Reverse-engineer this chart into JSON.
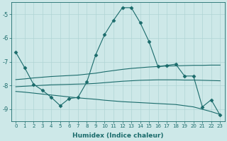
{
  "xlabel": "Humidex (Indice chaleur)",
  "bg_color": "#cde8e8",
  "line_color": "#1a6b6b",
  "grid_color": "#afd4d4",
  "xlim": [
    -0.5,
    23.5
  ],
  "ylim": [
    -9.5,
    -4.5
  ],
  "yticks": [
    -9,
    -8,
    -7,
    -6,
    -5
  ],
  "xticks": [
    0,
    1,
    2,
    3,
    4,
    5,
    6,
    7,
    8,
    9,
    10,
    11,
    12,
    13,
    14,
    15,
    16,
    17,
    18,
    19,
    20,
    21,
    22,
    23
  ],
  "series": [
    {
      "x": [
        0,
        1,
        2,
        3,
        4,
        5,
        6,
        7,
        8,
        9,
        10,
        11,
        12,
        13,
        14,
        15,
        16,
        17,
        18,
        19,
        20,
        21,
        22,
        23
      ],
      "y": [
        -6.6,
        -7.25,
        -7.95,
        -8.2,
        -8.5,
        -8.85,
        -8.55,
        -8.5,
        -7.85,
        -6.7,
        -5.85,
        -5.25,
        -4.72,
        -4.72,
        -5.35,
        -6.15,
        -7.2,
        -7.15,
        -7.1,
        -7.6,
        -7.6,
        -8.9,
        -8.6,
        -9.25
      ],
      "marker": "D",
      "markersize": 2.5
    },
    {
      "x": [
        0,
        1,
        2,
        3,
        4,
        5,
        6,
        7,
        8,
        9,
        10,
        11,
        12,
        13,
        14,
        15,
        16,
        17,
        18,
        19,
        20,
        21,
        22,
        23
      ],
      "y": [
        -7.75,
        -7.72,
        -7.68,
        -7.65,
        -7.62,
        -7.6,
        -7.58,
        -7.56,
        -7.52,
        -7.48,
        -7.42,
        -7.37,
        -7.32,
        -7.28,
        -7.25,
        -7.22,
        -7.2,
        -7.18,
        -7.17,
        -7.16,
        -7.15,
        -7.15,
        -7.14,
        -7.14
      ],
      "marker": null
    },
    {
      "x": [
        0,
        1,
        2,
        3,
        4,
        5,
        6,
        7,
        8,
        9,
        10,
        11,
        12,
        13,
        14,
        15,
        16,
        17,
        18,
        19,
        20,
        21,
        22,
        23
      ],
      "y": [
        -8.05,
        -8.03,
        -8.01,
        -7.99,
        -7.97,
        -7.96,
        -7.95,
        -7.94,
        -7.93,
        -7.91,
        -7.88,
        -7.85,
        -7.82,
        -7.8,
        -7.78,
        -7.77,
        -7.76,
        -7.76,
        -7.76,
        -7.77,
        -7.77,
        -7.78,
        -7.79,
        -7.8
      ],
      "marker": null
    },
    {
      "x": [
        0,
        1,
        2,
        3,
        4,
        5,
        6,
        7,
        8,
        9,
        10,
        11,
        12,
        13,
        14,
        15,
        16,
        17,
        18,
        19,
        20,
        21,
        22,
        23
      ],
      "y": [
        -8.25,
        -8.28,
        -8.32,
        -8.36,
        -8.4,
        -8.44,
        -8.48,
        -8.52,
        -8.55,
        -8.58,
        -8.62,
        -8.65,
        -8.68,
        -8.7,
        -8.72,
        -8.74,
        -8.76,
        -8.78,
        -8.8,
        -8.85,
        -8.9,
        -9.0,
        -9.1,
        -9.22
      ],
      "marker": null
    }
  ]
}
